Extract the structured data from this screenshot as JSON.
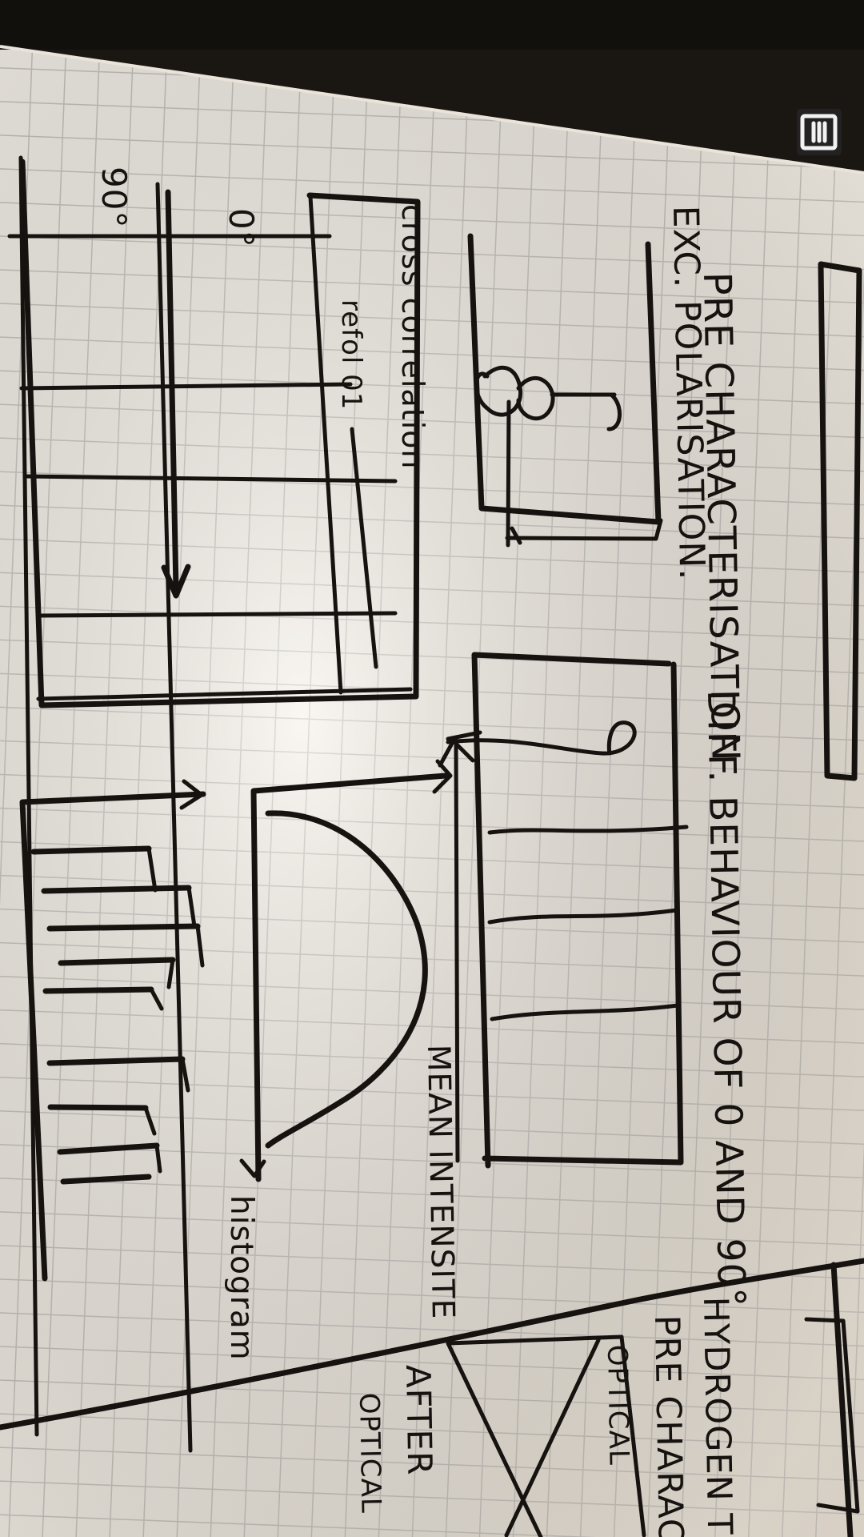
{
  "photo": {
    "scene": "grid-paper-sketch",
    "ink_color": "#15120f",
    "paper_color": "#f5f0e7",
    "grid_color": "#c9c5bf",
    "background_color": "#1a1713"
  },
  "notes": {
    "title": "PRE CHARACTERISATION",
    "subtitle": "EXC. POLARISATION.",
    "cross_correlation": "cross correlation",
    "inner_label": "refol 01",
    "angle_0": "0°",
    "angle_90": "90°",
    "diff_behaviour": "DIFF. BEHAVIOUR OF 0 AND 90°",
    "mean_intensity": "MEAN INTENSITE",
    "histogram": "histogram",
    "hydrogen": "HYDROGEN TE",
    "pre_charact": "PRE CHARACT",
    "optical": "OPTICAL",
    "after": "AFTER",
    "optical_after": "OPTICAL"
  },
  "icons": {
    "corner_badge": "menu-icon"
  }
}
